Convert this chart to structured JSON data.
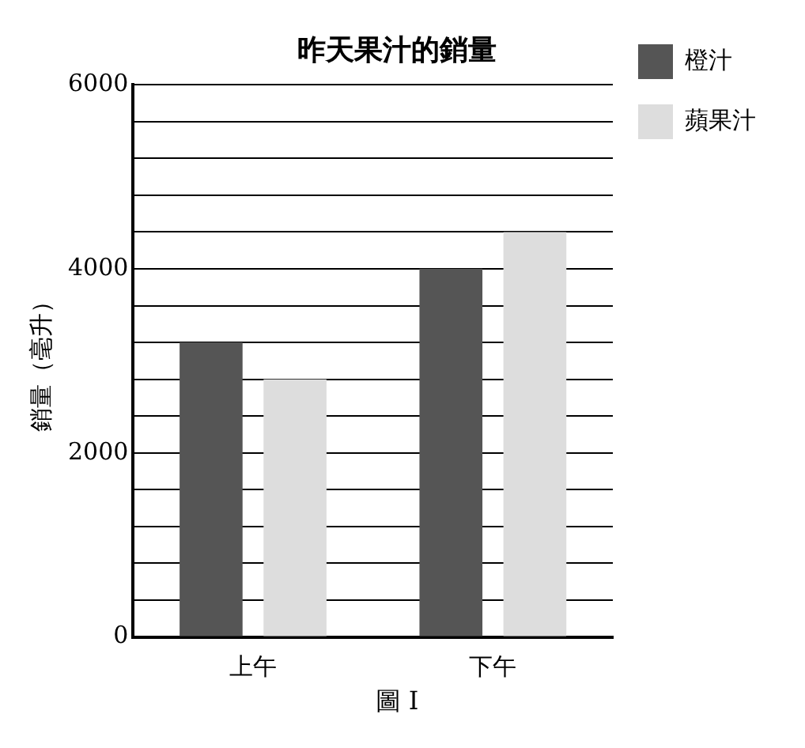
{
  "chart_data": {
    "type": "bar",
    "title": "昨天果汁的銷量",
    "ylabel": "銷量（毫升）",
    "categories": [
      "上午",
      "下午"
    ],
    "series": [
      {
        "name": "橙汁",
        "color": "#555555",
        "values": [
          3200,
          4000
        ]
      },
      {
        "name": "蘋果汁",
        "color": "#dddddd",
        "values": [
          2800,
          4400
        ]
      }
    ],
    "ylim": [
      0,
      6000
    ],
    "yticks": [
      0,
      {
        "value": 400,
        "label": null
      },
      {
        "value": 800,
        "label": null
      },
      {
        "value": 1200,
        "label": null
      },
      {
        "value": 1600,
        "label": null
      },
      2000,
      {
        "value": 2400,
        "label": null
      },
      {
        "value": 2800,
        "label": null
      },
      {
        "value": 3200,
        "label": null
      },
      {
        "value": 3600,
        "label": null
      },
      4000,
      {
        "value": 4400,
        "label": null
      },
      {
        "value": 4800,
        "label": null
      },
      {
        "value": 5200,
        "label": null
      },
      {
        "value": 5600,
        "label": null
      },
      6000
    ],
    "grid": "y",
    "legend": "top right",
    "annotations": [
      "圖 I"
    ]
  }
}
